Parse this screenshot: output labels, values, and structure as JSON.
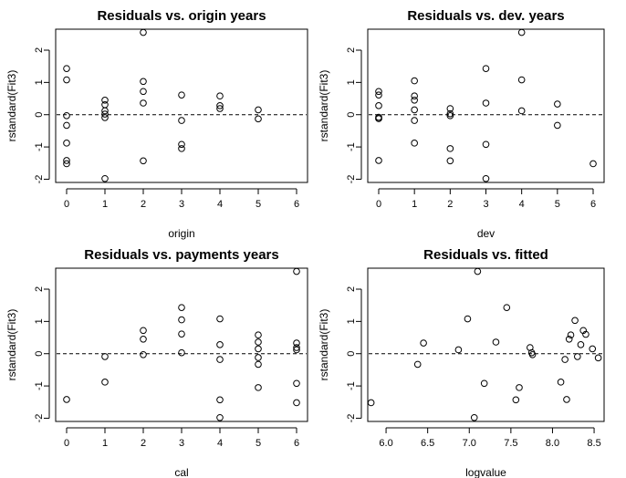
{
  "chart_data": [
    {
      "type": "scatter",
      "title": "Residuals vs. origin years",
      "xlabel": "origin",
      "ylabel": "rstandard(Fit3)",
      "xlim": [
        0,
        6
      ],
      "ylim": [
        -2.1,
        2.65
      ],
      "xticks": [
        0,
        1,
        2,
        3,
        4,
        5,
        6
      ],
      "yticks": [
        -2,
        -1,
        0,
        1,
        2
      ],
      "hline": 0,
      "grid": false,
      "x": [
        0,
        0,
        0,
        0,
        0,
        0,
        0,
        1,
        1,
        1,
        1,
        1,
        1,
        2,
        2,
        2,
        2,
        2,
        3,
        3,
        3,
        3,
        4,
        4,
        4,
        5,
        5
      ],
      "y": [
        1.43,
        1.08,
        -0.03,
        -0.33,
        -0.88,
        -1.42,
        -1.52,
        0.45,
        0.31,
        0.12,
        0.02,
        -0.09,
        -1.98,
        2.55,
        1.03,
        0.72,
        0.36,
        -1.43,
        0.61,
        -0.18,
        -0.92,
        -1.05,
        0.58,
        0.28,
        0.19,
        0.15,
        -0.13
      ]
    },
    {
      "type": "scatter",
      "title": "Residuals vs. dev. years",
      "xlabel": "dev",
      "ylabel": "rstandard(Fit3)",
      "xlim": [
        0,
        6
      ],
      "ylim": [
        -2.1,
        2.65
      ],
      "xticks": [
        0,
        1,
        2,
        3,
        4,
        5,
        6
      ],
      "yticks": [
        -2,
        -1,
        0,
        1,
        2
      ],
      "hline": 0,
      "grid": false,
      "x": [
        0,
        0,
        0,
        0,
        0,
        0,
        0,
        1,
        1,
        1,
        1,
        1,
        1,
        2,
        2,
        2,
        2,
        2,
        3,
        3,
        3,
        3,
        4,
        4,
        4,
        5,
        5,
        6
      ],
      "y": [
        0.72,
        0.61,
        0.28,
        -0.08,
        -0.12,
        -1.42,
        -0.12,
        1.05,
        0.58,
        0.45,
        0.15,
        -0.18,
        -0.88,
        0.19,
        0.03,
        -0.03,
        -1.05,
        -1.43,
        1.43,
        0.36,
        -0.92,
        -1.98,
        2.55,
        1.08,
        0.12,
        0.33,
        -0.33,
        -1.52
      ]
    },
    {
      "type": "scatter",
      "title": "Residuals vs. payments years",
      "xlabel": "cal",
      "ylabel": "rstandard(Fit3)",
      "xlim": [
        0,
        6
      ],
      "ylim": [
        -2.1,
        2.65
      ],
      "xticks": [
        0,
        1,
        2,
        3,
        4,
        5,
        6
      ],
      "yticks": [
        -2,
        -1,
        0,
        1,
        2
      ],
      "hline": 0,
      "grid": false,
      "x": [
        0,
        1,
        1,
        2,
        2,
        2,
        3,
        3,
        3,
        3,
        4,
        4,
        4,
        4,
        4,
        5,
        5,
        5,
        5,
        5,
        5,
        6,
        6,
        6,
        6,
        6,
        6
      ],
      "y": [
        -1.42,
        -0.09,
        -0.88,
        0.72,
        0.45,
        -0.03,
        1.43,
        1.05,
        0.61,
        0.03,
        1.08,
        0.28,
        -0.18,
        -1.43,
        -1.98,
        0.58,
        0.36,
        0.15,
        -0.12,
        -0.33,
        -1.05,
        2.55,
        0.33,
        0.19,
        0.12,
        -0.92,
        -1.52
      ]
    },
    {
      "type": "scatter",
      "title": "Residuals vs. fitted",
      "xlabel": "logvalue",
      "ylabel": "rstandard(Fit3)",
      "xlim": [
        5.78,
        8.62
      ],
      "ylim": [
        -2.1,
        2.65
      ],
      "xticks": [
        6.0,
        6.5,
        7.0,
        7.5,
        8.0,
        8.5
      ],
      "xticklabels": [
        "6.0",
        "6.5",
        "7.0",
        "7.5",
        "8.0",
        "8.5"
      ],
      "yticks": [
        -2,
        -1,
        0,
        1,
        2
      ],
      "hline": 0,
      "grid": false,
      "x": [
        5.82,
        6.38,
        6.45,
        6.87,
        6.98,
        7.06,
        7.1,
        7.18,
        7.32,
        7.45,
        7.56,
        7.6,
        7.73,
        7.75,
        7.76,
        8.1,
        8.15,
        8.17,
        8.2,
        8.22,
        8.27,
        8.3,
        8.34,
        8.37,
        8.4,
        8.48,
        8.55
      ],
      "y": [
        -1.52,
        -0.33,
        0.33,
        0.12,
        1.08,
        -1.98,
        2.55,
        -0.92,
        0.36,
        1.43,
        -1.43,
        -1.05,
        0.19,
        0.03,
        -0.03,
        -0.88,
        -0.18,
        -1.42,
        0.45,
        0.58,
        1.03,
        -0.09,
        0.28,
        0.72,
        0.6,
        0.15,
        -0.13
      ]
    }
  ]
}
